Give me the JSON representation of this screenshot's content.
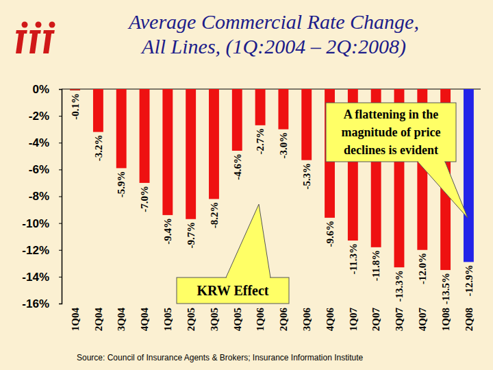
{
  "chart_data": {
    "type": "bar",
    "title": [
      "Average Commercial Rate Change,",
      "All Lines, (1Q:2004 – 2Q:2008)"
    ],
    "categories": [
      "1Q04",
      "2Q04",
      "3Q04",
      "4Q04",
      "1Q05",
      "2Q05",
      "3Q05",
      "4Q05",
      "1Q06",
      "2Q06",
      "3Q06",
      "4Q06",
      "1Q07",
      "2Q07",
      "3Q07",
      "4Q07",
      "1Q08",
      "2Q08"
    ],
    "values": [
      -0.1,
      -3.2,
      -5.9,
      -7.0,
      -9.4,
      -9.7,
      -8.2,
      -4.6,
      -2.7,
      -3.0,
      -5.3,
      -9.6,
      -11.3,
      -11.8,
      -13.3,
      -12.0,
      -13.5,
      -12.9
    ],
    "value_labels": [
      "-0.1%",
      "-3.2%",
      "-5.9%",
      "-7.0%",
      "-9.4%",
      "-9.7%",
      "-8.2%",
      "-4.6%",
      "-2.7%",
      "-3.0%",
      "-5.3%",
      "-9.6%",
      "-11.3%",
      "-11.8%",
      "-13.3%",
      "-12.0%",
      "-13.5%",
      "-12.9%"
    ],
    "colors": [
      "#c0281c",
      "#ee1111",
      "#ee1111",
      "#ee1111",
      "#ee1111",
      "#ee1111",
      "#ee1111",
      "#ee1111",
      "#ee1111",
      "#ee1111",
      "#ee1111",
      "#ee1111",
      "#ee1111",
      "#ee1111",
      "#ee1111",
      "#ee1111",
      "#ee1111",
      "#2323e8"
    ],
    "data_labels": true,
    "ylim": [
      -16,
      0
    ],
    "yticks": [
      {
        "value": 0,
        "label": "0%"
      },
      {
        "value": -2,
        "label": "-2%"
      },
      {
        "value": -4,
        "label": "-4%"
      },
      {
        "value": -6,
        "label": "-6%"
      },
      {
        "value": -8,
        "label": "-8%"
      },
      {
        "value": -10,
        "label": "-10%"
      },
      {
        "value": -12,
        "label": "-12%"
      },
      {
        "value": -14,
        "label": "-14%"
      },
      {
        "value": -16,
        "label": "-16%"
      }
    ],
    "grid": false,
    "annotations": [
      {
        "lines": [
          "A flattening in the",
          "magnitude of price",
          "declines is evident"
        ]
      },
      {
        "lines": [
          "KRW Effect"
        ]
      }
    ],
    "source": "Source:  Council of Insurance Agents & Brokers; Insurance Information Institute"
  }
}
